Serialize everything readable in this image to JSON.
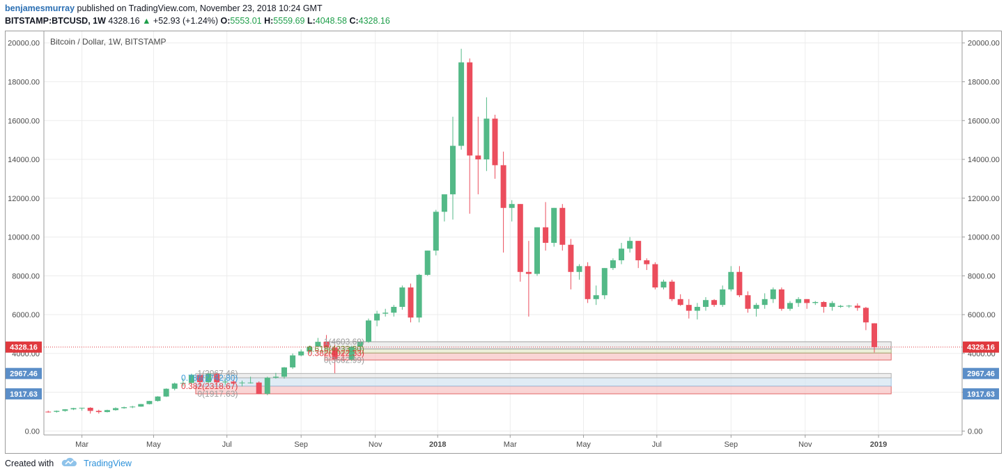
{
  "header": {
    "author": "benjamesmurray",
    "published_text": "published on TradingView.com, November 23, 2018 10:24 GMT"
  },
  "quote": {
    "symbol": "BITSTAMP:BTCUSD, 1W",
    "last": "4328.16",
    "change": "+52.93 (+1.24%)",
    "open_label": "O:",
    "open": "5553.01",
    "high_label": "H:",
    "high": "5559.69",
    "low_label": "L:",
    "low": "4048.58",
    "close_label": "C:",
    "close": "4328.16",
    "up_arrow": "▲"
  },
  "footer": {
    "created_with": "Created with",
    "brand": "TradingView"
  },
  "chart_data": {
    "type": "candlestick",
    "title": "Bitcoin / Dollar, 1W, BITSTAMP",
    "ylim": [
      -200,
      20600
    ],
    "y_ticks": [
      0,
      2000,
      4000,
      6000,
      8000,
      10000,
      12000,
      14000,
      16000,
      18000,
      20000
    ],
    "y_tick_labels": [
      "0.00",
      "2000.00",
      "4000.00",
      "6000.00",
      "8000.00",
      "10000.00",
      "12000.00",
      "14000.00",
      "16000.00",
      "18000.00",
      "20000.00"
    ],
    "x_ticks": [
      {
        "label": "Mar",
        "week": 4,
        "bold": false
      },
      {
        "label": "May",
        "week": 12.5,
        "bold": false
      },
      {
        "label": "Jul",
        "week": 21.2,
        "bold": false
      },
      {
        "label": "Sep",
        "week": 30,
        "bold": false
      },
      {
        "label": "Nov",
        "week": 38.8,
        "bold": false
      },
      {
        "label": "2018",
        "week": 46.2,
        "bold": true
      },
      {
        "label": "Mar",
        "week": 54.8,
        "bold": false
      },
      {
        "label": "May",
        "week": 63.5,
        "bold": false
      },
      {
        "label": "Jul",
        "week": 72.2,
        "bold": false
      },
      {
        "label": "Sep",
        "week": 81,
        "bold": false
      },
      {
        "label": "Nov",
        "week": 89.8,
        "bold": false
      },
      {
        "label": "2019",
        "week": 98.5,
        "bold": true
      }
    ],
    "candles": [
      [
        1000,
        1050,
        950,
        990
      ],
      [
        990,
        1060,
        950,
        1040
      ],
      [
        1040,
        1130,
        1000,
        1120
      ],
      [
        1120,
        1200,
        1080,
        1180
      ],
      [
        1180,
        1200,
        1050,
        1200
      ],
      [
        1200,
        1230,
        900,
        1040
      ],
      [
        1040,
        1100,
        900,
        980
      ],
      [
        980,
        1100,
        960,
        1080
      ],
      [
        1080,
        1220,
        1050,
        1180
      ],
      [
        1180,
        1260,
        1150,
        1230
      ],
      [
        1230,
        1300,
        1180,
        1260
      ],
      [
        1260,
        1400,
        1250,
        1390
      ],
      [
        1390,
        1560,
        1370,
        1550
      ],
      [
        1550,
        1800,
        1520,
        1780
      ],
      [
        1780,
        2200,
        1760,
        2180
      ],
      [
        2180,
        2500,
        2100,
        2450
      ],
      [
        2450,
        2720,
        2300,
        2480
      ],
      [
        2480,
        2960,
        2400,
        2900
      ],
      [
        2900,
        3000,
        2300,
        2520
      ],
      [
        2520,
        3000,
        2450,
        2960
      ],
      [
        2960,
        2980,
        2380,
        2510
      ],
      [
        2510,
        2720,
        2380,
        2550
      ],
      [
        2550,
        2650,
        2400,
        2480
      ],
      [
        2480,
        2600,
        2300,
        2500
      ],
      [
        2500,
        2800,
        2450,
        2500
      ],
      [
        2500,
        2560,
        1900,
        1920
      ],
      [
        1920,
        2800,
        1850,
        2750
      ],
      [
        2750,
        3000,
        2700,
        2800
      ],
      [
        2800,
        3300,
        2700,
        3280
      ],
      [
        3280,
        4000,
        3200,
        3900
      ],
      [
        3900,
        4200,
        3850,
        4100
      ],
      [
        4100,
        4400,
        4000,
        4350
      ],
      [
        4350,
        4800,
        4300,
        4600
      ],
      [
        4600,
        4950,
        4400,
        4300
      ],
      [
        4300,
        4450,
        2980,
        3700
      ],
      [
        3700,
        4050,
        3600,
        3680
      ],
      [
        3680,
        4400,
        3600,
        4350
      ],
      [
        4350,
        4500,
        4150,
        4600
      ],
      [
        4600,
        5800,
        4550,
        5700
      ],
      [
        5700,
        6200,
        5400,
        6050
      ],
      [
        6050,
        6300,
        5900,
        6100
      ],
      [
        6100,
        6500,
        5900,
        6400
      ],
      [
        6400,
        7500,
        6250,
        7400
      ],
      [
        7400,
        7600,
        5600,
        5850
      ],
      [
        5850,
        8100,
        5600,
        8050
      ],
      [
        8050,
        9300,
        8000,
        9300
      ],
      [
        9300,
        11400,
        9050,
        11300
      ],
      [
        11300,
        12100,
        10800,
        12200
      ],
      [
        12200,
        16200,
        10900,
        14700
      ],
      [
        14700,
        19700,
        14500,
        19000
      ],
      [
        19000,
        19200,
        11200,
        14200
      ],
      [
        14200,
        16200,
        12200,
        14000
      ],
      [
        14000,
        17200,
        13400,
        16100
      ],
      [
        16100,
        16300,
        13000,
        13700
      ],
      [
        13700,
        14400,
        9200,
        11500
      ],
      [
        11500,
        11900,
        10800,
        11700
      ],
      [
        11700,
        11700,
        7700,
        8200
      ],
      [
        8200,
        9800,
        5900,
        8100
      ],
      [
        8100,
        10500,
        8000,
        10500
      ],
      [
        10500,
        11800,
        9300,
        9700
      ],
      [
        9700,
        11500,
        9500,
        11500
      ],
      [
        11500,
        11700,
        9300,
        9600
      ],
      [
        9600,
        9900,
        7300,
        8200
      ],
      [
        8200,
        8600,
        7800,
        8500
      ],
      [
        8500,
        8700,
        6600,
        6800
      ],
      [
        6800,
        7500,
        6500,
        7000
      ],
      [
        7000,
        8400,
        6800,
        8400
      ],
      [
        8400,
        8900,
        8300,
        8800
      ],
      [
        8800,
        9700,
        8600,
        9400
      ],
      [
        9400,
        10000,
        9200,
        9800
      ],
      [
        9800,
        9800,
        8400,
        8800
      ],
      [
        8800,
        8900,
        8300,
        8600
      ],
      [
        8600,
        8700,
        7300,
        7400
      ],
      [
        7400,
        7800,
        7300,
        7700
      ],
      [
        7700,
        7800,
        6700,
        6800
      ],
      [
        6800,
        7050,
        6450,
        6500
      ],
      [
        6500,
        6800,
        5800,
        6200
      ],
      [
        6200,
        6600,
        5750,
        6400
      ],
      [
        6400,
        6900,
        6200,
        6750
      ],
      [
        6750,
        6800,
        6400,
        6500
      ],
      [
        6500,
        7500,
        6400,
        7300
      ],
      [
        7300,
        8500,
        7200,
        8200
      ],
      [
        8200,
        8500,
        6900,
        7000
      ],
      [
        7000,
        7200,
        6100,
        6300
      ],
      [
        6300,
        6600,
        5900,
        6500
      ],
      [
        6500,
        7100,
        6300,
        6800
      ],
      [
        6800,
        7400,
        6600,
        7300
      ],
      [
        7300,
        7400,
        6200,
        6300
      ],
      [
        6300,
        6700,
        6200,
        6600
      ],
      [
        6600,
        6900,
        6400,
        6800
      ],
      [
        6800,
        6800,
        6300,
        6600
      ],
      [
        6600,
        6700,
        6500,
        6650
      ],
      [
        6650,
        6700,
        6100,
        6400
      ],
      [
        6400,
        6700,
        6200,
        6600
      ],
      [
        6400,
        6500,
        6350,
        6450
      ],
      [
        6450,
        6500,
        6350,
        6460
      ],
      [
        6460,
        6580,
        6200,
        6350
      ],
      [
        6350,
        6400,
        5200,
        5600
      ],
      [
        5553.01,
        5559.69,
        4048.58,
        4328.16
      ]
    ],
    "zones": [
      {
        "from_week": 17.5,
        "to_week": 100,
        "y1": 2318.67,
        "y2": 1917.63,
        "fill": "#f8c7c7",
        "stroke": "#e06666"
      },
      {
        "from_week": 17.5,
        "to_week": 100,
        "y1": 2742.8,
        "y2": 2318.67,
        "fill": "#d6e6f2",
        "stroke": "#9ec2e0"
      },
      {
        "from_week": 17.5,
        "to_week": 100,
        "y1": 2967.46,
        "y2": 2742.8,
        "fill": "#e8e8e8",
        "stroke": "#b0b0b0"
      },
      {
        "from_week": 32.8,
        "to_week": 100,
        "y1": 4022.33,
        "y2": 3662.99,
        "fill": "#f8c7c7",
        "stroke": "#e06666"
      },
      {
        "from_week": 32.8,
        "to_week": 100,
        "y1": 4233.3,
        "y2": 4022.33,
        "fill": "#e6e9cc",
        "stroke": "#a8b07a"
      },
      {
        "from_week": 32.8,
        "to_week": 100,
        "y1": 4603.69,
        "y2": 4233.3,
        "fill": "#e8e8e8",
        "stroke": "#a0a0a0"
      }
    ],
    "fib_labels": [
      {
        "text": "1(2967.46)",
        "week": 22.5,
        "value": 2967.46,
        "color": "#9a9a9a"
      },
      {
        "text": "0.786(2742.80)",
        "week": 22.5,
        "value": 2742.8,
        "color": "#3b9ad9"
      },
      {
        "text": "0.382(2318.67)",
        "week": 22.5,
        "value": 2318.67,
        "color": "#e0393e"
      },
      {
        "text": "0(1917.63)",
        "week": 22.5,
        "value": 1917.63,
        "color": "#9a9a9a"
      },
      {
        "text": "1(4603.69)",
        "week": 37.5,
        "value": 4603.69,
        "color": "#9a9a9a"
      },
      {
        "text": "0.618(4233.30)",
        "week": 37.5,
        "value": 4233.3,
        "color": "#6e8e2e"
      },
      {
        "text": "0.382(4022.33)",
        "week": 37.5,
        "value": 4022.33,
        "color": "#e0393e"
      },
      {
        "text": "0(3662.99)",
        "week": 37.5,
        "value": 3662.99,
        "color": "#9a9a9a"
      }
    ],
    "price_badges": [
      {
        "text": "4328.16",
        "value": 4328.16,
        "color": "#e0393e"
      },
      {
        "text": "2967.46",
        "value": 2967.46,
        "color": "#5b8ec8"
      },
      {
        "text": "1917.63",
        "value": 1917.63,
        "color": "#5b8ec8"
      }
    ],
    "colors": {
      "up": "#53b987",
      "down": "#eb4d5c",
      "grid": "#ececec",
      "axis": "#9b9b9b",
      "text": "#4a4a4a"
    }
  }
}
